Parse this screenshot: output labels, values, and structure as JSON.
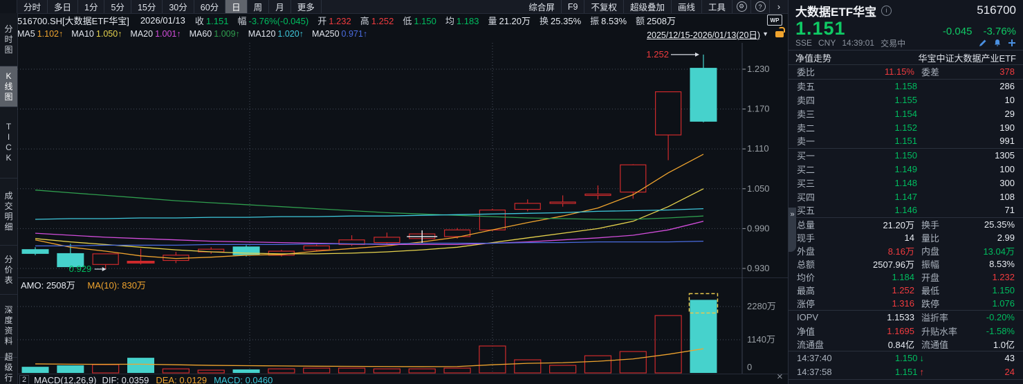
{
  "colors": {
    "up_red": "#cf2a2c",
    "down_cyan": "#46d2cc",
    "text_green": "#00bd5f",
    "text_red": "#f03b3e",
    "ma5": "#f0a42e",
    "ma10": "#e8d44d",
    "ma20": "#d24ddb",
    "ma60": "#2f9e4e",
    "ma120": "#3fc8dc",
    "ma250": "#4a6ce0",
    "vol_ma": "#f0a42e",
    "axis_text": "#9aa0a6",
    "grid": "#474e5c",
    "annotation_green": "#00bd5f",
    "annotation_red": "#f03b3e",
    "selection_yellow": "#e8c84d"
  },
  "icons": {
    "gear": "⚙",
    "help": "?",
    "chevron_right": "›",
    "dropdown": "▼",
    "collapse": "»",
    "close": "×",
    "up_arrow": "↑",
    "down_arrow": "↓",
    "info": "i",
    "wp": "WP",
    "trend_up": "↑"
  },
  "topnav": {
    "left_items": [
      "分时",
      "多日",
      "1分",
      "5分",
      "15分",
      "30分",
      "60分",
      "日",
      "周",
      "月",
      "更多"
    ],
    "selected": "日",
    "right_items": [
      "综合屏",
      "F9",
      "不复权",
      "超级叠加",
      "画线",
      "工具"
    ]
  },
  "info_bar": {
    "symbol": "516700.SH[大数据ETF华宝]",
    "date": "2026/01/13",
    "fields": [
      {
        "label": "收",
        "value": "1.151",
        "color": "c-g"
      },
      {
        "label": "幅",
        "value": "-3.76%(-0.045)",
        "color": "c-g"
      },
      {
        "label": "开",
        "value": "1.232",
        "color": "c-r"
      },
      {
        "label": "高",
        "value": "1.252",
        "color": "c-r"
      },
      {
        "label": "低",
        "value": "1.150",
        "color": "c-g"
      },
      {
        "label": "均",
        "value": "1.183",
        "color": "c-g"
      },
      {
        "label": "量",
        "value": "21.20万",
        "color": "c-w"
      },
      {
        "label": "换",
        "value": "25.35%",
        "color": "c-w"
      },
      {
        "label": "振",
        "value": "8.53%",
        "color": "c-w"
      },
      {
        "label": "额",
        "value": "2508万",
        "color": "c-w"
      }
    ],
    "wp_badge": "WP"
  },
  "ma_bar": {
    "items": [
      {
        "label": "MA5",
        "value": "1.102↑",
        "color": "c-o"
      },
      {
        "label": "MA10",
        "value": "1.050↑",
        "color": "c-y"
      },
      {
        "label": "MA20",
        "value": "1.001↑",
        "color": "c-m"
      },
      {
        "label": "MA60",
        "value": "1.009↑",
        "color": "c-gr"
      },
      {
        "label": "MA120",
        "value": "1.020↑",
        "color": "c-c"
      },
      {
        "label": "MA250",
        "value": "0.971↑",
        "color": "c-b"
      }
    ],
    "range": "2025/12/15-2026/01/13(20日)"
  },
  "sidebar": {
    "tabs": [
      {
        "label": "分时图",
        "selected": false,
        "h": 76
      },
      {
        "label": "K线图",
        "selected": true,
        "h": 58
      },
      {
        "label": "TICK",
        "selected": false,
        "h": 102
      },
      {
        "label": "成交明细",
        "selected": false,
        "h": 96
      },
      {
        "label": "分价表",
        "selected": false,
        "h": 70
      },
      {
        "label": "深度资料",
        "selected": false,
        "h": 90
      },
      {
        "label": "超级行情",
        "selected": false,
        "h": 44
      }
    ]
  },
  "chart_data": {
    "type": "candlestick+volume",
    "title": "516700.SH 大数据ETF华宝 日K",
    "date_range": "2025/12/15-2026/01/13(20日)",
    "price_axis": [
      1.23,
      1.17,
      1.11,
      1.05,
      0.99,
      0.93
    ],
    "volume_axis_labels": [
      "2280万",
      "1140万",
      "0"
    ],
    "volume_axis_values": [
      2280,
      1140,
      0
    ],
    "prev_close_before_window": 0.968,
    "candles": [
      {
        "o": 0.959,
        "h": 0.962,
        "l": 0.95,
        "c": 0.952,
        "v": 210
      },
      {
        "o": 0.953,
        "h": 0.967,
        "l": 0.93,
        "c": 0.932,
        "v": 260
      },
      {
        "o": 0.936,
        "h": 0.952,
        "l": 0.929,
        "c": 0.952,
        "v": 285
      },
      {
        "o": 0.938,
        "h": 0.96,
        "l": 0.936,
        "c": 0.941,
        "v": 520,
        "solid": true
      },
      {
        "o": 0.942,
        "h": 0.955,
        "l": 0.938,
        "c": 0.95,
        "v": 140
      },
      {
        "o": 0.955,
        "h": 0.962,
        "l": 0.952,
        "c": 0.959,
        "v": 95
      },
      {
        "o": 0.963,
        "h": 0.965,
        "l": 0.948,
        "c": 0.95,
        "v": 120
      },
      {
        "o": 0.95,
        "h": 0.958,
        "l": 0.948,
        "c": 0.956,
        "v": 140
      },
      {
        "o": 0.958,
        "h": 0.966,
        "l": 0.956,
        "c": 0.964,
        "v": 165
      },
      {
        "o": 0.966,
        "h": 0.98,
        "l": 0.964,
        "c": 0.973,
        "v": 165
      },
      {
        "o": 0.969,
        "h": 0.984,
        "l": 0.967,
        "c": 0.977,
        "v": 140
      },
      {
        "o": 0.975,
        "h": 0.984,
        "l": 0.973,
        "c": 0.982,
        "v": 140
      },
      {
        "o": 0.978,
        "h": 0.991,
        "l": 0.975,
        "c": 0.988,
        "v": 165
      },
      {
        "o": 0.988,
        "h": 1.02,
        "l": 0.986,
        "c": 1.018,
        "v": 925
      },
      {
        "o": 1.019,
        "h": 1.034,
        "l": 1.016,
        "c": 1.028,
        "v": 450
      },
      {
        "o": 1.03,
        "h": 1.04,
        "l": 1.023,
        "c": 1.03,
        "v": 260
      },
      {
        "o": 1.042,
        "h": 1.055,
        "l": 1.034,
        "c": 1.042,
        "v": 590
      },
      {
        "o": 1.045,
        "h": 1.087,
        "l": 1.035,
        "c": 1.086,
        "v": 735
      },
      {
        "o": 1.131,
        "h": 1.196,
        "l": 1.093,
        "c": 1.196,
        "v": 1970
      },
      {
        "o": 1.232,
        "h": 1.252,
        "l": 1.15,
        "c": 1.151,
        "v": 2508
      }
    ],
    "ma": {
      "ma5": [
        0.973,
        0.962,
        0.956,
        0.949,
        0.945,
        0.947,
        0.95,
        0.951,
        0.956,
        0.96,
        0.964,
        0.97,
        0.977,
        0.988,
        0.999,
        1.009,
        1.021,
        1.041,
        1.074,
        1.102
      ],
      "ma10": [
        0.975,
        0.97,
        0.966,
        0.962,
        0.958,
        0.955,
        0.953,
        0.952,
        0.952,
        0.953,
        0.955,
        0.958,
        0.962,
        0.969,
        0.976,
        0.983,
        0.99,
        1.001,
        1.023,
        1.05
      ],
      "ma20": [
        0.983,
        0.98,
        0.977,
        0.975,
        0.973,
        0.971,
        0.97,
        0.969,
        0.968,
        0.967,
        0.966,
        0.966,
        0.966,
        0.968,
        0.97,
        0.973,
        0.976,
        0.98,
        0.988,
        1.001
      ],
      "ma60": [
        1.048,
        1.044,
        1.04,
        1.036,
        1.032,
        1.029,
        1.026,
        1.023,
        1.02,
        1.017,
        1.014,
        1.012,
        1.01,
        1.008,
        1.006,
        1.005,
        1.004,
        1.004,
        1.006,
        1.009
      ],
      "ma120": [
        1.004,
        1.005,
        1.005,
        1.006,
        1.006,
        1.007,
        1.007,
        1.008,
        1.008,
        1.009,
        1.009,
        1.01,
        1.011,
        1.012,
        1.013,
        1.014,
        1.016,
        1.017,
        1.018,
        1.02
      ],
      "ma250": [
        0.964,
        0.964,
        0.965,
        0.965,
        0.965,
        0.966,
        0.966,
        0.966,
        0.967,
        0.967,
        0.967,
        0.968,
        0.968,
        0.968,
        0.969,
        0.969,
        0.97,
        0.97,
        0.97,
        0.971
      ]
    },
    "vol_ma10": [
      310,
      300,
      295,
      300,
      280,
      260,
      250,
      240,
      230,
      225,
      220,
      215,
      220,
      280,
      330,
      350,
      400,
      480,
      640,
      830
    ],
    "annotations": {
      "low_label": "0.929",
      "low_index": 2,
      "high_label": "1.252",
      "high_index": 19
    },
    "crosshair": {
      "candle_index": 11,
      "price": 0.978
    },
    "selected_volume_bar": 19,
    "legend_position": "top-left",
    "grid": true
  },
  "volume_header": {
    "amo": "AMO: 2508万",
    "ma10": "MA(10): 830万"
  },
  "macd_bar": {
    "index": "2",
    "name": "MACD(12,26,9)",
    "dif": "DIF: 0.0359",
    "dea": "DEA: 0.0129",
    "macd": "MACD: 0.0460"
  },
  "quote_panel": {
    "name": "大数据ETF华宝",
    "code": "516700",
    "last": "1.151",
    "change": "-0.045",
    "change_pct": "-3.76%",
    "exchange": "SSE",
    "currency": "CNY",
    "time": "14:39:01",
    "status": "交易中",
    "nav_label": "净值走势",
    "fund_name": "华宝中证大数据产业ETF",
    "weibi": {
      "label": "委比",
      "value": "11.15%",
      "diff_label": "委差",
      "diff": "378"
    },
    "asks": [
      {
        "label": "卖五",
        "price": "1.158",
        "qty": "286"
      },
      {
        "label": "卖四",
        "price": "1.155",
        "qty": "10"
      },
      {
        "label": "卖三",
        "price": "1.154",
        "qty": "29"
      },
      {
        "label": "卖二",
        "price": "1.152",
        "qty": "190"
      },
      {
        "label": "卖一",
        "price": "1.151",
        "qty": "991"
      }
    ],
    "bids": [
      {
        "label": "买一",
        "price": "1.150",
        "qty": "1305"
      },
      {
        "label": "买二",
        "price": "1.149",
        "qty": "100"
      },
      {
        "label": "买三",
        "price": "1.148",
        "qty": "300"
      },
      {
        "label": "买四",
        "price": "1.147",
        "qty": "108"
      },
      {
        "label": "买五",
        "price": "1.146",
        "qty": "71"
      }
    ],
    "stats": [
      {
        "l1": "总量",
        "v1": "21.20万",
        "c1": "c-w",
        "l2": "换手",
        "v2": "25.35%",
        "c2": "c-w"
      },
      {
        "l1": "现手",
        "v1": "14",
        "c1": "c-w",
        "l2": "量比",
        "v2": "2.99",
        "c2": "c-w"
      },
      {
        "l1": "外盘",
        "v1": "8.16万",
        "c1": "c-r",
        "l2": "内盘",
        "v2": "13.04万",
        "c2": "c-g"
      },
      {
        "l1": "总额",
        "v1": "2507.96万",
        "c1": "c-w",
        "l2": "振幅",
        "v2": "8.53%",
        "c2": "c-w"
      },
      {
        "l1": "均价",
        "v1": "1.184",
        "c1": "c-g",
        "l2": "开盘",
        "v2": "1.232",
        "c2": "c-r"
      },
      {
        "l1": "最高",
        "v1": "1.252",
        "c1": "c-r",
        "l2": "最低",
        "v2": "1.150",
        "c2": "c-g"
      },
      {
        "l1": "涨停",
        "v1": "1.316",
        "c1": "c-r",
        "l2": "跌停",
        "v2": "1.076",
        "c2": "c-g"
      }
    ],
    "iopv_rows": [
      {
        "l1": "IOPV",
        "v1": "1.1533",
        "c1": "c-w",
        "l2": "溢折率",
        "v2": "-0.20%",
        "c2": "c-g"
      },
      {
        "l1": "净值",
        "v1": "1.1695",
        "c1": "c-r",
        "l2": "升贴水率",
        "v2": "-1.58%",
        "c2": "c-g"
      },
      {
        "l1": "流通盘",
        "v1": "0.84亿",
        "c1": "c-w",
        "l2": "流通值",
        "v2": "1.0亿",
        "c2": "c-w"
      }
    ],
    "ticks": [
      {
        "time": "14:37:40",
        "price": "1.150",
        "dir": "down",
        "qty": "43",
        "qty_color": "c-w"
      },
      {
        "time": "14:37:58",
        "price": "1.151",
        "dir": "up",
        "qty": "24",
        "qty_color": "c-r"
      }
    ]
  }
}
